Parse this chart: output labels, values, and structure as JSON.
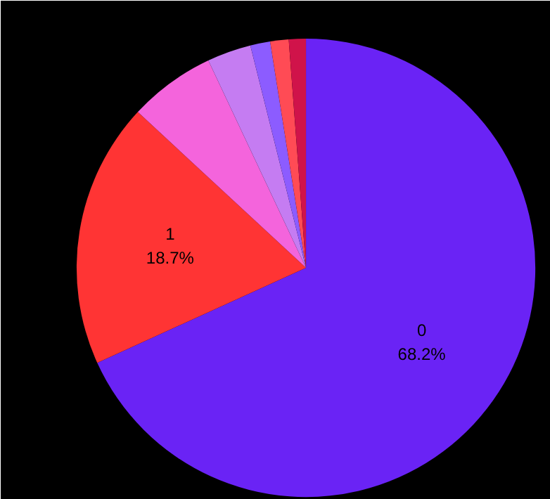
{
  "chart_data": {
    "type": "pie",
    "categories": [
      "0",
      "1",
      null,
      null,
      null,
      null,
      null
    ],
    "values": [
      68.2,
      18.7,
      6.1,
      3.1,
      1.4,
      1.3,
      1.2
    ],
    "colors": [
      "#6a23f5",
      "#ff3434",
      "#f464dc",
      "#c57cf2",
      "#8c5cff",
      "#ff4b55",
      "#d0134a"
    ],
    "value_labels": [
      "68.2%",
      "18.7%",
      null,
      null,
      null,
      null,
      null
    ]
  }
}
